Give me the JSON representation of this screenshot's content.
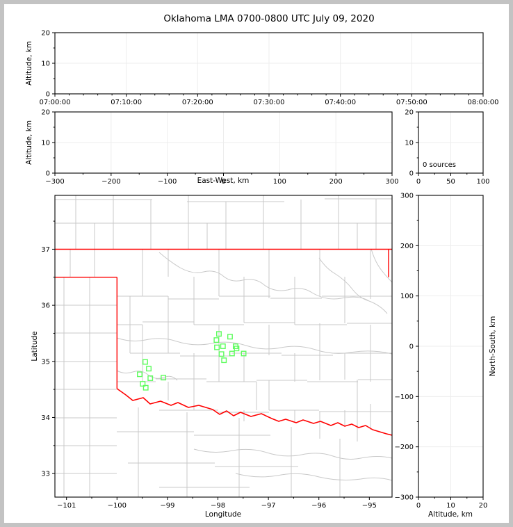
{
  "title": "Oklahoma LMA 0700-0800 UTC July 09, 2020",
  "colors": {
    "marker_green": "#5dfc5d",
    "state_border_red": "#ff0000",
    "county_gray": "#c9c9c9",
    "grid_gray": "#ededed",
    "frame_black": "#000000",
    "page_border_gray": "#c3c3c3"
  },
  "panels": {
    "time_height": {
      "ylabel": "Altitude, km",
      "yticks": [
        "0",
        "10",
        "20"
      ],
      "xticks": [
        "07:00:00",
        "07:10:00",
        "07:20:00",
        "07:30:00",
        "07:40:00",
        "07:50:00",
        "08:00:00"
      ]
    },
    "ew_height": {
      "ylabel": "Altitude, km",
      "xlabel": "East-West, km",
      "yticks": [
        "0",
        "10",
        "20"
      ],
      "xticks": [
        "−300",
        "−200",
        "−100",
        "0",
        "100",
        "200",
        "300"
      ]
    },
    "histogram": {
      "annotation": "0 sources",
      "yticks": [
        "0",
        "10",
        "20"
      ],
      "xticks": [
        "0",
        "50",
        "100"
      ]
    },
    "map": {
      "ylabel": "Latitude",
      "xlabel": "Longitude",
      "yticks": [
        "37",
        "36",
        "35",
        "34",
        "33"
      ],
      "xticks": [
        "−101",
        "−100",
        "−99",
        "−98",
        "−97",
        "−96",
        "−95"
      ]
    },
    "ns_height": {
      "xlabel": "Altitude, km",
      "ylabel_right": "North-South, km",
      "yticks": [
        "300",
        "200",
        "100",
        "0",
        "−100",
        "−200",
        "−300"
      ],
      "xticks": [
        "0",
        "10",
        "20"
      ]
    }
  },
  "chart_data": [
    {
      "type": "scatter",
      "panel": "altitude-vs-time",
      "title": "Oklahoma LMA 0700-0800 UTC July 09, 2020",
      "xlabel": "",
      "ylabel": "Altitude, km",
      "xlim": [
        "07:00:00",
        "08:00:00"
      ],
      "x_tick_interval_min": 10,
      "ylim": [
        0,
        20
      ],
      "grid": true,
      "points": []
    },
    {
      "type": "scatter",
      "panel": "altitude-vs-east-west",
      "xlabel": "East-West, km",
      "ylabel": "Altitude, km",
      "xlim": [
        -300,
        300
      ],
      "ylim": [
        0,
        20
      ],
      "grid": true,
      "points": []
    },
    {
      "type": "histogram",
      "panel": "source-count",
      "annotation": "0 sources",
      "xlim": [
        0,
        100
      ],
      "ylim": [
        0,
        20
      ],
      "grid": true,
      "points": []
    },
    {
      "type": "scatter",
      "panel": "plan-view-map",
      "xlabel": "Longitude",
      "ylabel": "Latitude",
      "xlim": [
        -101.23,
        -94.55
      ],
      "ylim": [
        32.58,
        37.96
      ],
      "grid": false,
      "overlays": [
        "oklahoma-state-border-red",
        "county-borders-gray",
        "rivers-gray"
      ],
      "series": [
        {
          "name": "green-square-markers",
          "marker": "open-square",
          "color": "#5dfc5d",
          "points": [
            [
              -97.98,
              35.49
            ],
            [
              -97.76,
              35.44
            ],
            [
              -98.03,
              35.38
            ],
            [
              -97.9,
              35.27
            ],
            [
              -98.02,
              35.25
            ],
            [
              -97.65,
              35.27
            ],
            [
              -97.63,
              35.23
            ],
            [
              -97.49,
              35.14
            ],
            [
              -97.72,
              35.14
            ],
            [
              -97.93,
              35.13
            ],
            [
              -97.88,
              35.02
            ],
            [
              -99.44,
              34.99
            ],
            [
              -99.37,
              34.87
            ],
            [
              -99.55,
              34.77
            ],
            [
              -99.34,
              34.7
            ],
            [
              -99.08,
              34.71
            ],
            [
              -99.49,
              34.6
            ],
            [
              -99.43,
              34.53
            ]
          ]
        }
      ]
    },
    {
      "type": "scatter",
      "panel": "north-south-vs-altitude",
      "xlabel": "Altitude, km",
      "ylabel": "North-South, km",
      "xlim": [
        0,
        20
      ],
      "ylim": [
        -300,
        300
      ],
      "grid": true,
      "points": []
    }
  ]
}
